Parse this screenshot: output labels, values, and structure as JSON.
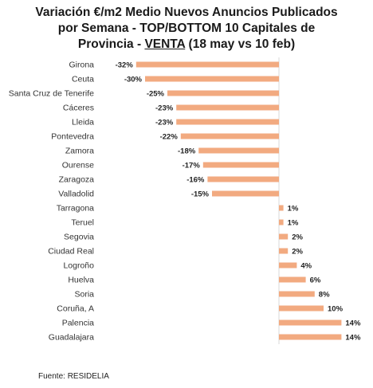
{
  "title": {
    "line1": "Variación €/m2 Medio Nuevos Anuncios Publicados",
    "line2": "por Semana - TOP/BOTTOM 10 Capitales de",
    "line3_pre": "Provincia - ",
    "line3_underlined": "VENTA",
    "line3_post": " (18 may vs 10 feb)"
  },
  "source": "Fuente: RESIDELIA",
  "colors": {
    "bar": "#f2aa80"
  },
  "chart_data": {
    "type": "bar",
    "orientation": "horizontal",
    "title": "Variación €/m2 Medio Nuevos Anuncios Publicados por Semana - TOP/BOTTOM 10 Capitales de Provincia - VENTA (18 may vs 10 feb)",
    "categories": [
      "Girona",
      "Ceuta",
      "Santa Cruz de Tenerife",
      "Cáceres",
      "Lleida",
      "Pontevedra",
      "Zamora",
      "Ourense",
      "Zaragoza",
      "Valladolid",
      "Tarragona",
      "Teruel",
      "Segovia",
      "Ciudad Real",
      "Logroño",
      "Huelva",
      "Soria",
      "Coruña, A",
      "Palencia",
      "Guadalajara"
    ],
    "values": [
      -32,
      -30,
      -25,
      -23,
      -23,
      -22,
      -18,
      -17,
      -16,
      -15,
      1,
      1,
      2,
      2,
      4,
      6,
      8,
      10,
      14,
      14
    ],
    "labels": [
      "-32%",
      "-30%",
      "-25%",
      "-23%",
      "-23%",
      "-22%",
      "-18%",
      "-17%",
      "-16%",
      "-15%",
      "1%",
      "1%",
      "2%",
      "2%",
      "4%",
      "6%",
      "8%",
      "10%",
      "14%",
      "14%"
    ],
    "unit": "%",
    "xlim": [
      -35,
      16
    ],
    "grid": false,
    "legend": "none"
  }
}
